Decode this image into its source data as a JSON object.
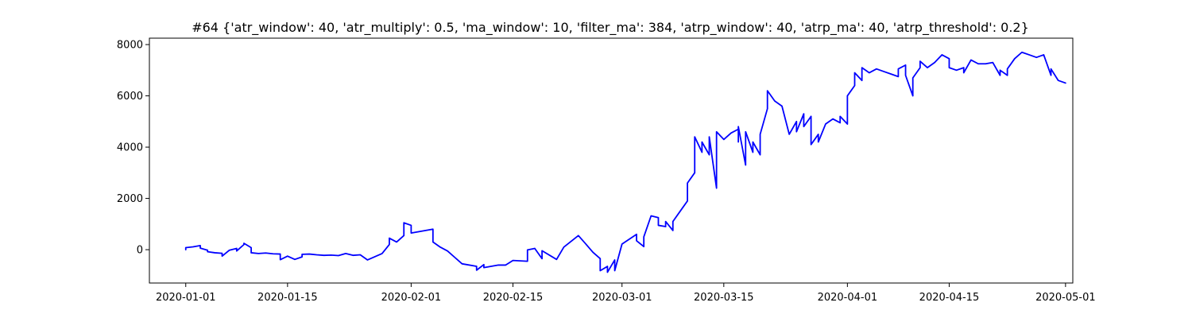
{
  "chart_data": {
    "type": "line",
    "title": "#64 {'atr_window': 40, 'atr_multiply': 0.5, 'ma_window': 10, 'filter_ma': 384, 'atrp_window': 40, 'atrp_ma': 40, 'atrp_threshold': 0.2}",
    "xlabel": "",
    "ylabel": "",
    "x_axis": "date",
    "xlim": [
      "2019-12-27",
      "2020-05-02"
    ],
    "ylim": [
      -1300,
      8250
    ],
    "grid": false,
    "x_ticks": [
      "2020-01-01",
      "2020-01-15",
      "2020-02-01",
      "2020-02-15",
      "2020-03-01",
      "2020-03-15",
      "2020-04-01",
      "2020-04-15",
      "2020-05-01"
    ],
    "y_ticks": [
      0,
      2000,
      4000,
      6000,
      8000
    ],
    "series": [
      {
        "color": "#0000ff",
        "points": [
          [
            "2020-01-01",
            0
          ],
          [
            "2020-01-01",
            80
          ],
          [
            "2020-01-02",
            110
          ],
          [
            "2020-01-03",
            160
          ],
          [
            "2020-01-03",
            60
          ],
          [
            "2020-01-04",
            -20
          ],
          [
            "2020-01-04",
            -80
          ],
          [
            "2020-01-05",
            -120
          ],
          [
            "2020-01-06",
            -140
          ],
          [
            "2020-01-06",
            -250
          ],
          [
            "2020-01-07",
            -20
          ],
          [
            "2020-01-08",
            50
          ],
          [
            "2020-01-08",
            -50
          ],
          [
            "2020-01-09",
            200
          ],
          [
            "2020-01-09",
            250
          ],
          [
            "2020-01-10",
            80
          ],
          [
            "2020-01-10",
            -120
          ],
          [
            "2020-01-11",
            -150
          ],
          [
            "2020-01-12",
            -130
          ],
          [
            "2020-01-13",
            -160
          ],
          [
            "2020-01-14",
            -170
          ],
          [
            "2020-01-14",
            -390
          ],
          [
            "2020-01-15",
            -250
          ],
          [
            "2020-01-16",
            -380
          ],
          [
            "2020-01-17",
            -280
          ],
          [
            "2020-01-17",
            -180
          ],
          [
            "2020-01-18",
            -170
          ],
          [
            "2020-01-19",
            -200
          ],
          [
            "2020-01-20",
            -220
          ],
          [
            "2020-01-21",
            -210
          ],
          [
            "2020-01-22",
            -230
          ],
          [
            "2020-01-23",
            -150
          ],
          [
            "2020-01-24",
            -220
          ],
          [
            "2020-01-25",
            -200
          ],
          [
            "2020-01-26",
            -400
          ],
          [
            "2020-01-28",
            -150
          ],
          [
            "2020-01-29",
            200
          ],
          [
            "2020-01-29",
            450
          ],
          [
            "2020-01-30",
            300
          ],
          [
            "2020-01-31",
            550
          ],
          [
            "2020-01-31",
            1050
          ],
          [
            "2020-02-01",
            950
          ],
          [
            "2020-02-01",
            650
          ],
          [
            "2020-02-04",
            800
          ],
          [
            "2020-02-04",
            300
          ],
          [
            "2020-02-05",
            100
          ],
          [
            "2020-02-06",
            -50
          ],
          [
            "2020-02-07",
            -300
          ],
          [
            "2020-02-08",
            -550
          ],
          [
            "2020-02-10",
            -650
          ],
          [
            "2020-02-10",
            -800
          ],
          [
            "2020-02-11",
            -580
          ],
          [
            "2020-02-11",
            -700
          ],
          [
            "2020-02-13",
            -600
          ],
          [
            "2020-02-14",
            -600
          ],
          [
            "2020-02-15",
            -420
          ],
          [
            "2020-02-17",
            -450
          ],
          [
            "2020-02-17",
            -10
          ],
          [
            "2020-02-18",
            50
          ],
          [
            "2020-02-19",
            -350
          ],
          [
            "2020-02-19",
            -40
          ],
          [
            "2020-02-21",
            -380
          ],
          [
            "2020-02-22",
            100
          ],
          [
            "2020-02-24",
            550
          ],
          [
            "2020-02-25",
            230
          ],
          [
            "2020-02-26",
            -100
          ],
          [
            "2020-02-27",
            -350
          ],
          [
            "2020-02-27",
            -820
          ],
          [
            "2020-02-28",
            -650
          ],
          [
            "2020-02-28",
            -880
          ],
          [
            "2020-02-29",
            -400
          ],
          [
            "2020-02-29",
            -820
          ],
          [
            "2020-03-01",
            220
          ],
          [
            "2020-03-03",
            600
          ],
          [
            "2020-03-03",
            350
          ],
          [
            "2020-03-04",
            120
          ],
          [
            "2020-03-04",
            500
          ],
          [
            "2020-03-05",
            1320
          ],
          [
            "2020-03-06",
            1250
          ],
          [
            "2020-03-06",
            950
          ],
          [
            "2020-03-07",
            900
          ],
          [
            "2020-03-07",
            1100
          ],
          [
            "2020-03-08",
            750
          ],
          [
            "2020-03-08",
            1100
          ],
          [
            "2020-03-09",
            1500
          ],
          [
            "2020-03-10",
            1900
          ],
          [
            "2020-03-10",
            2600
          ],
          [
            "2020-03-11",
            3000
          ],
          [
            "2020-03-11",
            4400
          ],
          [
            "2020-03-12",
            3800
          ],
          [
            "2020-03-12",
            4200
          ],
          [
            "2020-03-13",
            3700
          ],
          [
            "2020-03-13",
            4400
          ],
          [
            "2020-03-14",
            2400
          ],
          [
            "2020-03-14",
            4600
          ],
          [
            "2020-03-15",
            4300
          ],
          [
            "2020-03-16",
            4550
          ],
          [
            "2020-03-17",
            4700
          ],
          [
            "2020-03-17",
            4200
          ],
          [
            "2020-03-17",
            4800
          ],
          [
            "2020-03-18",
            3300
          ],
          [
            "2020-03-18",
            4600
          ],
          [
            "2020-03-19",
            3800
          ],
          [
            "2020-03-19",
            4200
          ],
          [
            "2020-03-20",
            3700
          ],
          [
            "2020-03-20",
            4500
          ],
          [
            "2020-03-21",
            5500
          ],
          [
            "2020-03-21",
            6200
          ],
          [
            "2020-03-22",
            5800
          ],
          [
            "2020-03-23",
            5600
          ],
          [
            "2020-03-24",
            4500
          ],
          [
            "2020-03-25",
            5000
          ],
          [
            "2020-03-25",
            4600
          ],
          [
            "2020-03-26",
            5300
          ],
          [
            "2020-03-26",
            4800
          ],
          [
            "2020-03-27",
            5200
          ],
          [
            "2020-03-27",
            4100
          ],
          [
            "2020-03-28",
            4500
          ],
          [
            "2020-03-28",
            4200
          ],
          [
            "2020-03-29",
            4900
          ],
          [
            "2020-03-30",
            5100
          ],
          [
            "2020-03-31",
            4950
          ],
          [
            "2020-03-31",
            5200
          ],
          [
            "2020-04-01",
            4900
          ],
          [
            "2020-04-01",
            5300
          ],
          [
            "2020-04-01",
            6000
          ],
          [
            "2020-04-02",
            6400
          ],
          [
            "2020-04-02",
            6900
          ],
          [
            "2020-04-03",
            6600
          ],
          [
            "2020-04-03",
            7100
          ],
          [
            "2020-04-04",
            6900
          ],
          [
            "2020-04-05",
            7050
          ],
          [
            "2020-04-06",
            6950
          ],
          [
            "2020-04-07",
            6850
          ],
          [
            "2020-04-08",
            6750
          ],
          [
            "2020-04-08",
            7050
          ],
          [
            "2020-04-09",
            7200
          ],
          [
            "2020-04-09",
            6800
          ],
          [
            "2020-04-10",
            6000
          ],
          [
            "2020-04-10",
            6700
          ],
          [
            "2020-04-11",
            7100
          ],
          [
            "2020-04-11",
            7350
          ],
          [
            "2020-04-12",
            7100
          ],
          [
            "2020-04-13",
            7300
          ],
          [
            "2020-04-14",
            7600
          ],
          [
            "2020-04-15",
            7450
          ],
          [
            "2020-04-15",
            7100
          ],
          [
            "2020-04-16",
            7000
          ],
          [
            "2020-04-17",
            7100
          ],
          [
            "2020-04-17",
            6900
          ],
          [
            "2020-04-18",
            7400
          ],
          [
            "2020-04-19",
            7250
          ],
          [
            "2020-04-20",
            7250
          ],
          [
            "2020-04-21",
            7300
          ],
          [
            "2020-04-22",
            6800
          ],
          [
            "2020-04-22",
            7000
          ],
          [
            "2020-04-23",
            6800
          ],
          [
            "2020-04-23",
            7050
          ],
          [
            "2020-04-24",
            7450
          ],
          [
            "2020-04-25",
            7700
          ],
          [
            "2020-04-26",
            7600
          ],
          [
            "2020-04-27",
            7500
          ],
          [
            "2020-04-28",
            7600
          ],
          [
            "2020-04-29",
            6800
          ],
          [
            "2020-04-29",
            7050
          ],
          [
            "2020-04-30",
            6600
          ],
          [
            "2020-05-01",
            6500
          ]
        ]
      }
    ]
  }
}
